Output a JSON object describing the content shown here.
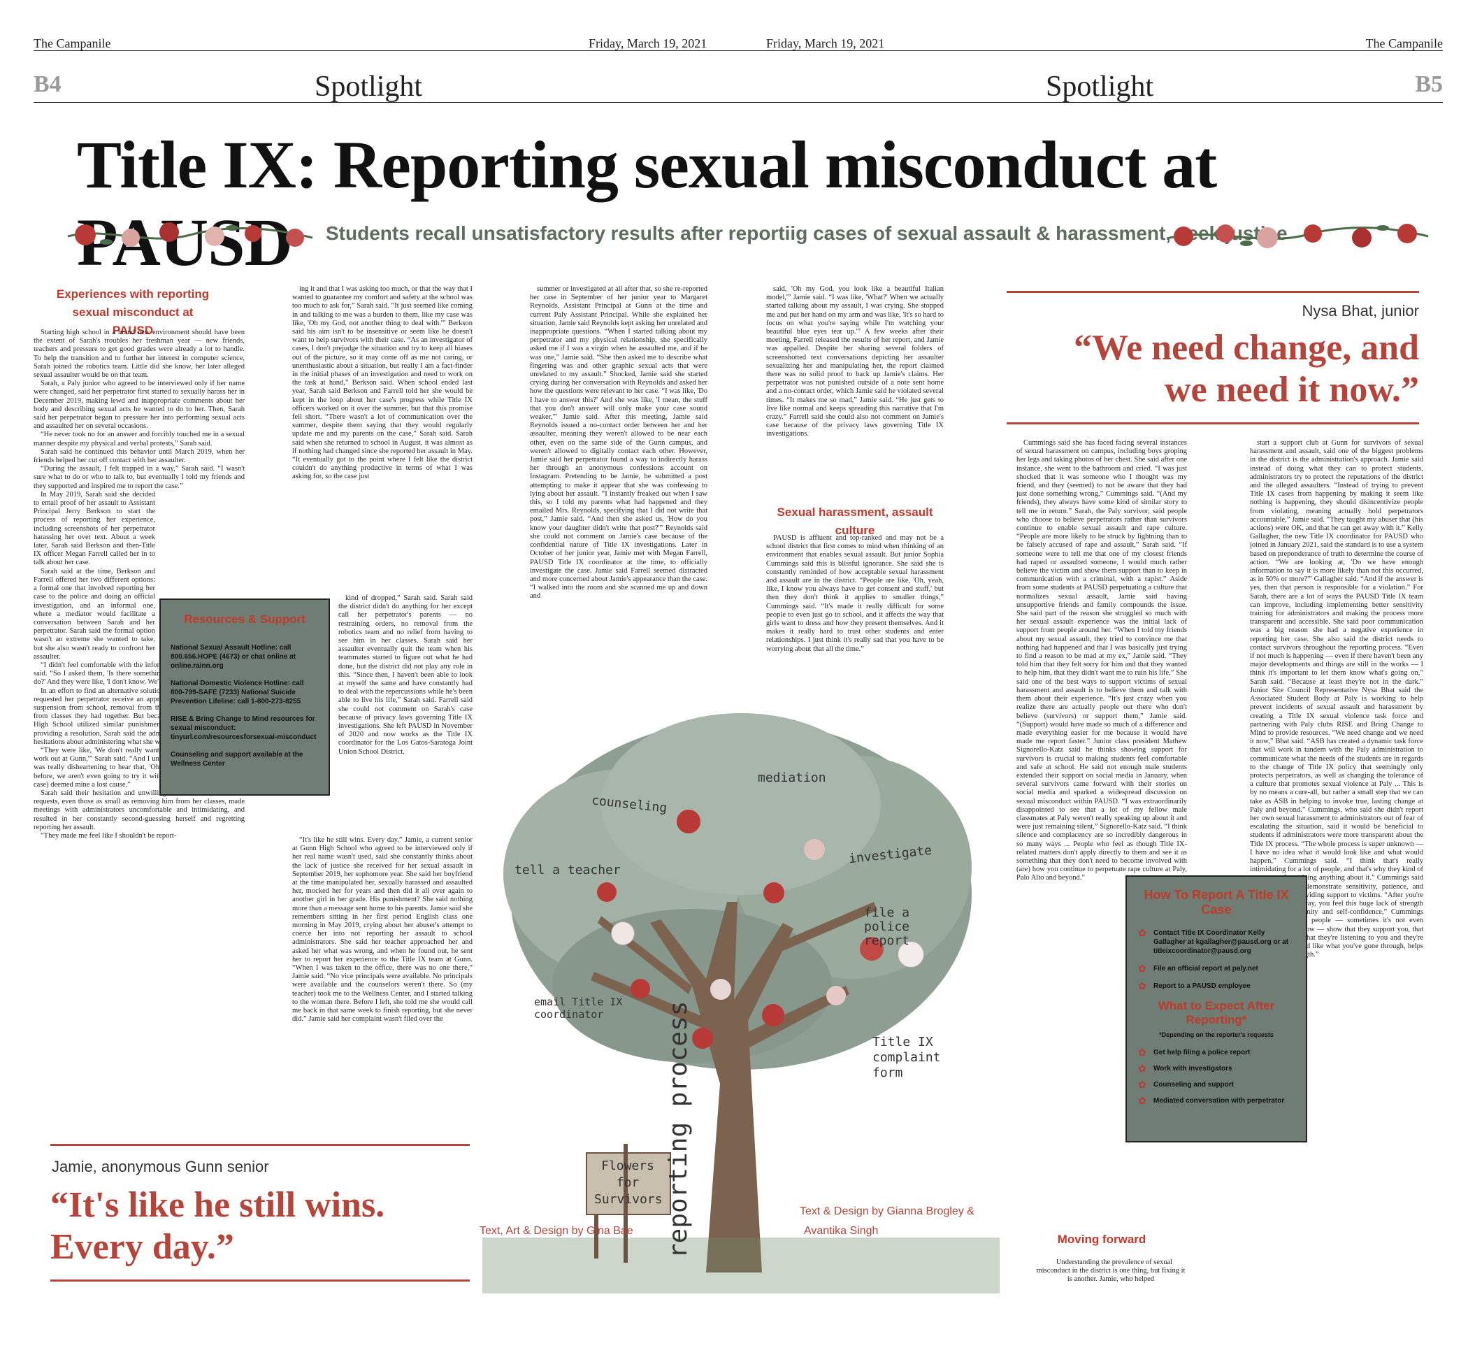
{
  "masthead": {
    "left_paper": "The Campanile",
    "left_date": "Friday, March 19, 2021",
    "right_date": "Friday, March 19, 2021",
    "right_paper": "The Campanile",
    "left_page": "B4",
    "right_page": "B5",
    "section_left": "Spotlight",
    "section_right": "Spotlight"
  },
  "headline": "Title IX: Reporting sexual misconduct at PAUSD",
  "subheadline": "Students recall unsatisfactory results after reportiig cases of sexual assault & harassment, seek justice",
  "col1": {
    "section_title": "Experiences with reporting sexual misconduct at PAUSD",
    "p1": "Starting high school in a brand new environment should have been the extent of Sarah's troubles her freshman year — new friends, teachers and pressure to get good grades were already a lot to handle. To help the transition and to further her interest in computer science, Sarah joined the robotics team. Little did she know, her later alleged sexual assaulter would be on that team.",
    "p2": "Sarah, a Paly junior who agreed to be interviewed only if her name were changed, said her perpetrator first started to sexually harass her in December 2019, making lewd and inappropriate comments about her body and describing sexual acts he wanted to do to her. Then, Sarah said her perpetrator began to pressure her into performing sexual acts and assaulted her on several occasions.",
    "p3": "“He never took no for an answer and forcibly touched me in a sexual manner despite my physical and verbal protests,” Sarah said.",
    "p4": "Sarah said he continued this behavior until March 2019, when her friends helped her cut off contact with her assaulter.",
    "p5": "“During the assault, I felt trapped in a way,” Sarah said. “I wasn't sure what to do or who to talk to, but eventually I told my friends and they supported and inspired me to report the case.”",
    "p6": "In May 2019, Sarah said she decided to email proof of her assault to Assistant Principal Jerry Berkson to start the process of reporting her experience, including screenshots of her perpetrator harassing her over text. About a week later, Sarah said Berkson and then-Title IX officer Megan Farrell called her in to talk about her case.",
    "p7": "Sarah said at the time, Berkson and Farrell offered her two different options: a formal one that involved reporting her case to the police and doing an official investigation, and an informal one, where a mediator would facilitate a conversation between Sarah and her perpetrator. Sarah said the formal option wasn't an extreme she wanted to take, but she also wasn't ready to confront her assaulter.",
    "p8": "“I didn't feel comfortable with the informal route, obviously,” Sarah said. “So I asked them, 'Is there something in the middle that we can do?' And they were like, 'I don't know. We'll have to see.'”",
    "p9": "In an effort to find an alternative solution to her case, Sarah said she requested her perpetrator receive an appropriate punishment, such as suspension from school, removal from the robotics team or removal from classes they had together. But because a similar case at Gunn High School utilized similar punishment and was unsuccessful in providing a resolution, Sarah said the administrators told her they had hesitations about administering what she was requesting.",
    "p10": "“They were like, 'We don't really want to try that because it didn't work out at Gunn,'” Sarah said. “And I understand their concern, but it was really disheartening to hear that, 'Oh, just because it didn't work before, we aren't even going to try it with you.' Somehow (the Gunn case) deemed mine a lost cause.”",
    "p11": "Sarah said their hesitation and unwillingness to accommodate her requests, even those as small as removing him from her classes, made meetings with administrators uncomfortable and intimidating, and resulted in her constantly second-guessing herself and regretting reporting her assault.",
    "p12": "“They made me feel like I shouldn't be report-"
  },
  "resources": {
    "title": "Resources & Support",
    "items": [
      "National Sexual Assault Hotline: call 800.656.HOPE (4673) or chat online at online.rainn.org",
      "National Domestic Violence Hotline: call 800-799-SAFE (7233) National Suicide Prevention Lifeline: call 1-800-273-8255",
      "RISE & Bring Change to Mind resources for sexual misconduct: tinyurl.com/resourcesforsexual-misconduct",
      "Counseling and support available at the Wellness Center"
    ]
  },
  "col2": {
    "top": "ing it and that I was asking too much, or that the way that I wanted to guarantee my comfort and safety at the school was too much to ask for,” Sarah said. “It just seemed like coming in and talking to me was a burden to them, like my case was like, 'Oh my God, not another thing to deal with.'” Berkson said his aim isn't to be insensitive or seem like he doesn't want to help survivors with their case. “As an investigator of cases, I don't prejudge the situation and try to keep all biases out of the picture, so it may come off as me not caring, or unenthusiastic about a situation, but really I am a fact-finder in the initial phases of an investigation and need to work on the task at hand,” Berkson said. When school ended last year, Sarah said Berkson and Farrell told her she would be kept in the loop about her case's progress while Title IX officers worked on it over the summer, but that this promise fell short. “There wasn't a lot of communication over the summer, despite them saying that they would regularly update me and my parents on the case,” Sarah said. Sarah said when she returned to school in August, it was almost as if nothing had changed since she reported her assault in May. “It eventually got to the point where I felt like the district couldn't do anything productive in terms of what I was asking for, so the case just",
    "right": "kind of dropped,” Sarah said. Sarah said the district didn't do anything for her except call her perpetrator's parents — no restraining orders, no removal from the robotics team and no relief from having to see him in her classes. Sarah said her assaulter eventually quit the team when his teammates started to figure out what he had done, but the district did not play any role in this. “Since then, I haven't been able to look at myself the same and have constantly had to deal with the repercussions while he's been able to live his life,” Sarah said. Farrell said she could not comment on Sarah's case because of privacy laws governing Title IX investigations. She left PAUSD in November of 2020 and now works as the Title IX coordinator for the Los Gatos-Saratoga Joint Union School District.",
    "bottom": "“It's like he still wins. Every day.” Jamie, a current senior at Gunn High School who agreed to be interviewed only if her real name wasn't used, said she constantly thinks about the lack of justice she received for her sexual assault in September 2019, her sophomore year. She said her boyfriend at the time manipulated her, sexually harassed and assaulted her, mocked her for years and then did it all over again to another girl in her grade. His punishment? She said nothing more than a message sent home to his parents. Jamie said she remembers sitting in her first period English class one morning in May 2019, crying about her abuser's attempt to coerce her into not reporting her assault to school administrators. She said her teacher approached her and asked her what was wrong, and when he found out, he sent her to report her experience to the Title IX team at Gunn. “When I was taken to the office, there was no one there,” Jamie said. “No vice principals were available. No principals were available and the counselors weren't there. So (my teacher) took me to the Wellness Center, and I started talking to the woman there. Before I left, she told me she would call me back in that same week to finish reporting, but she never did.” Jamie said her complaint wasn't filed over the"
  },
  "col3": {
    "text": "summer or investigated at all after that, so she re-reported her case in September of her junior year to Margaret Reynolds, Assistant Principal at Gunn at the time and current Paly Assistant Principal. While she explained her situation, Jamie said Reynolds kept asking her unrelated and inappropriate questions. “When I started talking about my perpetrator and my physical relationship, she specifically asked me if I was a virgin when he assaulted me, and if he was one,” Jamie said. “She then asked me to describe what fingering was and other graphic sexual acts that were unrelated to my assault.” Shocked, Jamie said she started crying during her conversation with Reynolds and asked her how the questions were relevant to her case. “I was like, 'Do I have to answer this?' And she was like, 'I mean, the stuff that you don't answer will only make your case sound weaker,'” Jamie said. After this meeting, Jamie said Reynolds issued a no-contact order between her and her assaulter, meaning they weren't allowed to be near each other, even on the same side of the Gunn campus, and weren't allowed to digitally contact each other. However, Jamie said her perpetrator found a way to indirectly harass her through an anonymous confessions account on Instagram. Pretending to be Jamie, he submitted a post attempting to make it appear that she was confessing to lying about her assault. “I instantly freaked out when I saw this, so I told my parents what had happened and they emailed Mrs. Reynolds, specifying that I did not write that post,” Jamie said. “And then she asked us, 'How do you know your daughter didn't write that post?'” Reynolds said she could not comment on Jamie's case because of the confidential nature of Title IX investigations. Later in October of her junior year, Jamie met with Megan Farrell, PAUSD Title IX coordinator at the time, to officially investigate the case. Jamie said Farrell seemed distracted and more concerned about Jamie's appearance than the case. “I walked into the room and she scanned me up and down and"
  },
  "col4": {
    "text": "said, 'Oh my God, you look like a beautiful Italian model,'” Jamie said. “I was like, 'What?' When we actually started talking about my assault, I was crying. She stopped me and put her hand on my arm and was like, 'It's so hard to focus on what you're saying while I'm watching your beautiful blue eyes tear up.'” A few weeks after their meeting, Farrell released the results of her report, and Jamie was appalled. Despite her sharing several folders of screenshotted text conversations depicting her assaulter sexualizing her and manipulating her, the report claimed there was no solid proof to back up Jamie's claims. Her perpetrator was not punished outside of a note sent home and a no-contact order, which Jamie said he violated several times. “It makes me so mad,” Jamie said. “He just gets to live like normal and keeps spreading this narrative that I'm crazy.” Farrell said she could also not comment on Jamie's case because of the privacy laws governing Title IX investigations.",
    "section_title": "Sexual harassment, assault culture",
    "text2": "PAUSD is affluent and top-ranked and may not be a school district that first comes to mind when thinking of an environment that enables sexual assault. But junior Sophia Cummings said this is blissful ignorance. She said she is constantly reminded of how acceptable sexual harassment and assault are in the district. “People are like, 'Oh, yeah, like, I know you always have to get consent and stuff,' but then they don't think it applies to smaller things,” Cummings said. “It's made it really difficult for some people to even just go to school, and it affects the way that girls want to dress and how they present themselves. And it makes it really hard to trust other students and enter relationships. I just think it's really sad that you have to be worrying about that all the time.”"
  },
  "tree": {
    "trunk_label": "reporting process",
    "branch_labels": [
      "mediation",
      "counseling",
      "investigate",
      "tell a teacher",
      "file a police report",
      "email Title IX coordinator",
      "Title IX complaint form"
    ],
    "sign": "Flowers for Survivors",
    "credit_left": "Text, Art & Design by Gina Bae",
    "credit_right_1": "Text & Design by Gianna Brogley &",
    "credit_right_2": "Avantika Singh"
  },
  "quote_left": {
    "attribution": "Jamie, anonymous Gunn senior",
    "line1": "“It's like he still wins.",
    "line2": "Every day.”"
  },
  "quote_right": {
    "attribution": "Nysa Bhat, junior",
    "line1": "“We need change, and",
    "line2": "we need it now.”"
  },
  "col5": {
    "text": "Cummings said she has faced facing several instances of sexual harassment on campus, including boys groping her legs and taking photos of her chest. She said after one instance, she went to the bathroom and cried. “I was just shocked that it was someone who I thought was my friend, and they (seemed) to not be aware that they had just done something wrong,” Cummings said. “(And my friends), they always have some kind of similar story to tell me in return.” Sarah, the Paly survivor, said people who choose to believe perpetrators rather than survivors continue to enable sexual assault and rape culture. “People are more likely to be struck by lightning than to be falsely accused of rape and assault,” Sarah said. “If someone were to tell me that one of my closest friends had raped or assaulted someone, I would much rather believe the victim and show them support than to keep in communication with a criminal, with a rapist.” Aside from some students at PAUSD perpetuating a culture that normalizes sexual assault, Jamie said having unsupportive friends and family compounds the issue. She said part of the reason she struggled so much with her sexual assault experience was the initial lack of support from people around her. “When I told my friends about my sexual assault, they tried to convince me that nothing had happened and that I was basically just trying to find a reason to be mad at my ex,” Jamie said. “They told him that they felt sorry for him and that they wanted to help him, that they didn't want me to ruin his life.” She said one of the best ways to support victims of sexual harassment and assault is to believe them and talk with them about their experience. “It's just crazy when you realize there are actually people out there who don't believe (survivors) or support them,” Jamie said. “(Support) would have made so much of a difference and made everything easier for me because it would have made me report faster.” Junior class president Mathew Signorello-Katz said he thinks showing support for survivors is crucial to making students feel comfortable and safe at school. He said not enough male students extended their support on social media in January, when several survivors came forward with their stories on social media and sparked a widespread discussion on sexual misconduct within PAUSD. “I was extraordinarily disappointed to see that a lot of my fellow male classmates at Paly weren't really speaking up about it and were just remaining silent,” Signorello-Katz said. “I think silence and complacency are so incredibly dangerous in so many ways ... People who feel as though Title IX-related matters don't apply directly to them and see it as something that they don't need to become involved with (are) how you continue to perpetuate rape culture at Paly, Palo Alto and beyond.”",
    "section_title": "Moving forward",
    "text2": "Understanding the prevalence of sexual misconduct in the district is one thing, but fixing it is another. Jamie, who helped"
  },
  "col6": {
    "text": "start a support club at Gunn for survivors of sexual harassment and assault, said one of the biggest problems in the district is the administration's approach. Jamie said instead of doing what they can to protect students, administrators try to protect the reputations of the district and the alleged assaulters. “Instead of trying to prevent Title IX cases from happening by making it seem like nothing is happening, they should disincentivize people from violating, meaning actually hold perpetrators accountable,” Jamie said. “They taught my abuser that (his actions) were OK, and that he can get away with it.” Kelly Gallagher, the new Title IX coordinator for PAUSD who joined in January 2021, said the standard is to use a system based on preponderance of truth to determine the course of action. “We are looking at, 'Do we have enough information to say it is more likely than not this occurred, as in 50% or more?'” Gallagher said. “And if the answer is yes, then that person is responsible for a violation.” For Sarah, there are a lot of ways the PAUSD Title IX team can improve, including implementing better sensitivity training for administrators and making the process more transparent and accessible. She said poor communication was a big reason she had a negative experience in reporting her case. She also said the district needs to contact survivors throughout the reporting process. “Even if not much is happening — even if there haven't been any major developments and things are still in the works — I think it's important to let them know what's going on,” Sarah said. “Because at least they're not in the dark.” Junior Site Council Representative Nysa Bhat said the Associated Student Body at Paly is working to help prevent incidents of sexual assault and harassment by creating a Title IX sexual violence task force and partnering with Paly clubs RISE and Bring Change to Mind to provide resources. “We need change and we need it now,” Bhat said. “ASB has created a dynamic task force that will work in tandem with the Paly administration to communicate what the needs of the students are in regards to the change of Title IX policy that seemingly only protects perpetrators, as well as changing the tolerance of a culture that promotes sexual violence at Paly ... This is by no means a cure-all, but rather a small step that we can take as ASB in helping to invoke true, lasting change at Paly and beyond.” Cummings, who said she didn't report her own sexual harassment to administrators out of fear of escalating the situation, said it would be beneficial to students if administrators were more transparent about the Title IX process. “The whole process is super unknown — I have no idea what it would look like and what would happen,” Cummings said. “I think that's really intimidating for a lot of people, and that's why they kind of steer away from doing anything about it.” Cummings said it's important to demonstrate sensitivity, patience, and empathy while providing support to victims. “After you're violated in some way, you feel this huge lack of strength and a loss of dignity and self-confidence,” Cummings said. “Just having people — sometimes it's not even people that you know — show that they support you, that they believe you, that they're listening to you and they're trying to understand like what you've gone through, helps give you that strength.”"
  },
  "howto": {
    "title": "How To Report A Title IX Case",
    "items": [
      "Contact Title IX Coordinator Kelly Gallagher at kgallagher@pausd.org or at titleixcoordinator@pausd.org",
      "File an official report at paly.net",
      "Report to a PAUSD employee"
    ],
    "expect_title": "What to Expect After Reporting*",
    "expect_note": "*Depending on the reporter's requests",
    "expect_items": [
      "Get help filing a police report",
      "Work with investigators",
      "Counseling and support",
      "Mediated conversation with perpetrator"
    ]
  },
  "colors": {
    "accent_red": "#b5443a",
    "box_green": "#6f7d74",
    "subhead_green": "#5d6d5d"
  }
}
